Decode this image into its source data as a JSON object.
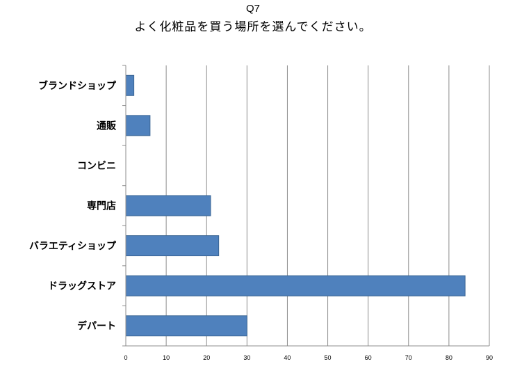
{
  "chart_data": {
    "type": "bar",
    "orientation": "horizontal",
    "title": "Q7",
    "subtitle": "よく化粧品を買う場所を選んでください。",
    "categories": [
      "ブランドショップ",
      "通販",
      "コンビニ",
      "専門店",
      "バラエティショップ",
      "ドラッグストア",
      "デパート"
    ],
    "values": [
      2,
      6,
      0,
      21,
      23,
      84,
      30
    ],
    "xlim": [
      0,
      90
    ],
    "x_ticks": [
      0,
      10,
      20,
      30,
      40,
      50,
      60,
      70,
      80,
      90
    ],
    "grid": true,
    "legend": "none",
    "bar_color": "#4F81BD"
  }
}
